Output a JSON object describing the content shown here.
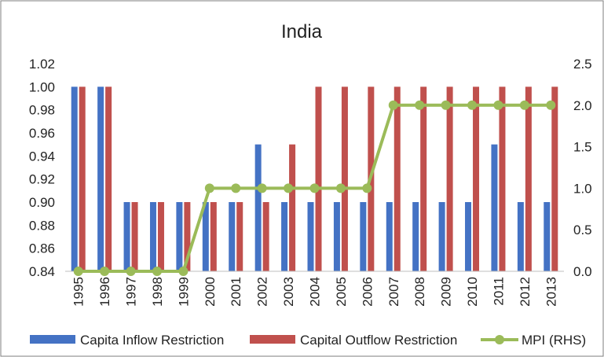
{
  "chart_data": {
    "type": "bar",
    "title": "India",
    "categories": [
      "1995",
      "1996",
      "1997",
      "1998",
      "1999",
      "2000",
      "2001",
      "2002",
      "2003",
      "2004",
      "2005",
      "2006",
      "2007",
      "2008",
      "2009",
      "2010",
      "2011",
      "2012",
      "2013"
    ],
    "series": [
      {
        "name": "Capita Inflow Restriction",
        "type": "bar",
        "axis": "left",
        "color": "#4472C4",
        "values": [
          1.0,
          1.0,
          0.9,
          0.9,
          0.9,
          0.9,
          0.9,
          0.95,
          0.9,
          0.9,
          0.9,
          0.9,
          0.9,
          0.9,
          0.9,
          0.9,
          0.95,
          0.9,
          0.9
        ]
      },
      {
        "name": "Capital Outflow Restriction",
        "type": "bar",
        "axis": "left",
        "color": "#C0504D",
        "values": [
          1.0,
          1.0,
          0.9,
          0.9,
          0.9,
          0.9,
          0.9,
          0.9,
          0.95,
          1.0,
          1.0,
          1.0,
          1.0,
          1.0,
          1.0,
          1.0,
          1.0,
          1.0,
          1.0
        ]
      },
      {
        "name": "MPI (RHS)",
        "type": "line",
        "axis": "right",
        "color": "#9BBB59",
        "values": [
          0,
          0,
          0,
          0,
          0,
          1,
          1,
          1,
          1,
          1,
          1,
          1,
          2,
          2,
          2,
          2,
          2,
          2,
          2
        ]
      }
    ],
    "y_left": {
      "ylim": [
        0.84,
        1.02
      ],
      "ticks": [
        "0.84",
        "0.86",
        "0.88",
        "0.90",
        "0.92",
        "0.94",
        "0.96",
        "0.98",
        "1.00",
        "1.02"
      ]
    },
    "y_right": {
      "ylim": [
        0.0,
        2.5
      ],
      "ticks": [
        "0.0",
        "0.5",
        "1.0",
        "1.5",
        "2.0",
        "2.5"
      ]
    },
    "grid": false,
    "legend": "bottom"
  }
}
